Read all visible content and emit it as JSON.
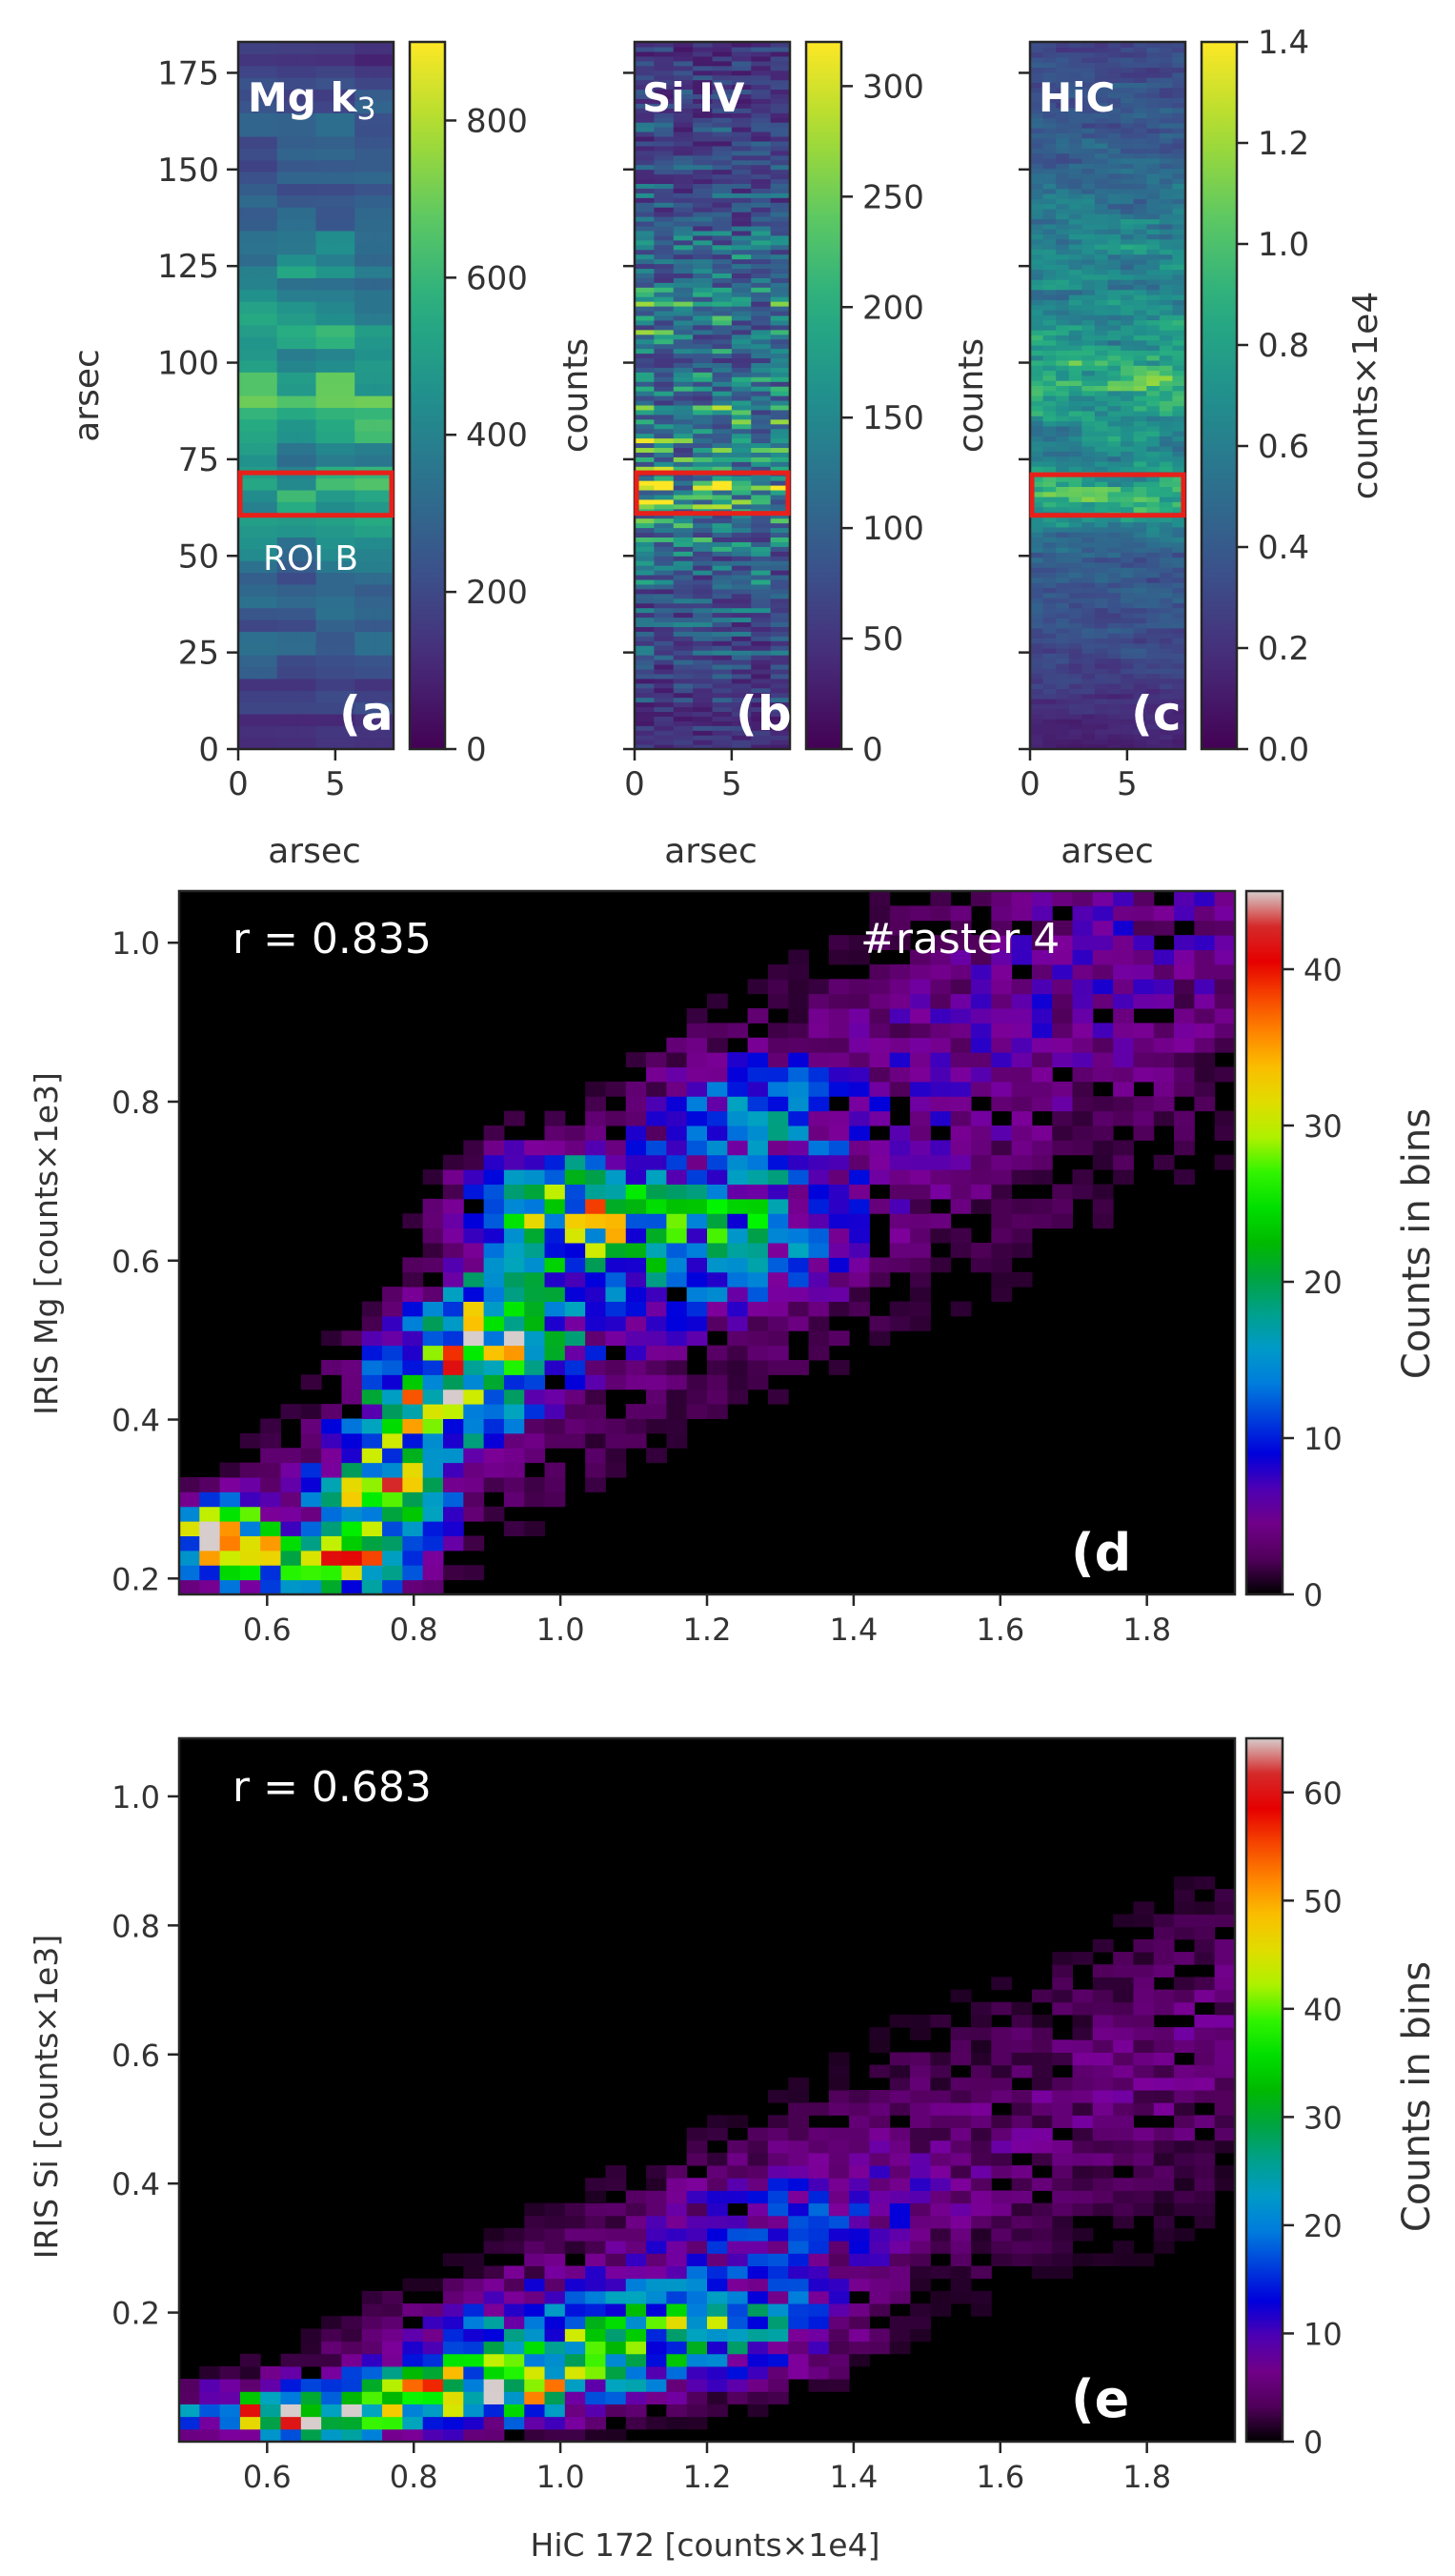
{
  "figure_labels": [
    "(a",
    "(b",
    "(c",
    "(d",
    "(e"
  ],
  "chart_data": [
    {
      "id": "a",
      "type": "heatmap",
      "panel_label": "(a",
      "title": "Mg k3",
      "title_main": "Mg k",
      "title_sub": "3",
      "annotation": "ROI B",
      "xlabel": "arsec",
      "ylabel": "arsec",
      "xlim": [
        0,
        8
      ],
      "ylim": [
        0,
        183
      ],
      "x_ticks": [
        0,
        5
      ],
      "y_ticks": [
        0,
        25,
        50,
        75,
        100,
        125,
        150,
        175
      ],
      "roi": {
        "x": [
          0.1,
          7.9
        ],
        "y": [
          60.5,
          71.5
        ],
        "color": "#e8201a"
      },
      "colormap": "viridis",
      "colorbar": {
        "label": "counts",
        "range": [
          0,
          900
        ],
        "ticks": [
          0,
          200,
          400,
          600,
          800
        ]
      },
      "profile": [
        [
          0,
          120
        ],
        [
          8,
          150
        ],
        [
          15,
          220
        ],
        [
          22,
          260
        ],
        [
          30,
          310
        ],
        [
          38,
          330
        ],
        [
          45,
          300
        ],
        [
          50,
          380
        ],
        [
          55,
          420
        ],
        [
          58,
          450
        ],
        [
          62,
          560
        ],
        [
          66,
          640
        ],
        [
          70,
          560
        ],
        [
          74,
          470
        ],
        [
          78,
          520
        ],
        [
          82,
          560
        ],
        [
          86,
          600
        ],
        [
          89,
          780
        ],
        [
          92,
          700
        ],
        [
          95,
          620
        ],
        [
          100,
          560
        ],
        [
          105,
          530
        ],
        [
          110,
          500
        ],
        [
          115,
          480
        ],
        [
          120,
          460
        ],
        [
          125,
          420
        ],
        [
          130,
          380
        ],
        [
          140,
          330
        ],
        [
          150,
          300
        ],
        [
          160,
          270
        ],
        [
          170,
          240
        ],
        [
          175,
          200
        ],
        [
          178,
          140
        ],
        [
          183,
          100
        ]
      ]
    },
    {
      "id": "b",
      "type": "heatmap",
      "panel_label": "(b",
      "title": "Si IV",
      "xlabel": "arsec",
      "ylabel": "",
      "xlim": [
        0,
        8
      ],
      "ylim": [
        0,
        183
      ],
      "x_ticks": [
        0,
        5
      ],
      "y_ticks": [
        0,
        25,
        50,
        75,
        100,
        125,
        150,
        175
      ],
      "roi": {
        "x": [
          0.1,
          7.9
        ],
        "y": [
          61,
          71.5
        ],
        "color": "#e8201a"
      },
      "colormap": "viridis",
      "colorbar": {
        "label": "counts",
        "range": [
          0,
          320
        ],
        "ticks": [
          0,
          50,
          100,
          150,
          200,
          250,
          300
        ]
      },
      "profile": [
        [
          0,
          40
        ],
        [
          10,
          55
        ],
        [
          20,
          70
        ],
        [
          30,
          80
        ],
        [
          40,
          95
        ],
        [
          50,
          110
        ],
        [
          55,
          130
        ],
        [
          60,
          160
        ],
        [
          65,
          220
        ],
        [
          70,
          190
        ],
        [
          75,
          150
        ],
        [
          80,
          160
        ],
        [
          85,
          170
        ],
        [
          90,
          150
        ],
        [
          100,
          130
        ],
        [
          110,
          150
        ],
        [
          120,
          140
        ],
        [
          130,
          110
        ],
        [
          140,
          90
        ],
        [
          150,
          80
        ],
        [
          160,
          70
        ],
        [
          170,
          60
        ],
        [
          183,
          50
        ]
      ]
    },
    {
      "id": "c",
      "type": "heatmap",
      "panel_label": "(c",
      "title": "HiC",
      "xlabel": "arsec",
      "ylabel": "",
      "xlim": [
        0,
        8
      ],
      "ylim": [
        0,
        183
      ],
      "x_ticks": [
        0,
        5
      ],
      "y_ticks": [
        0,
        25,
        50,
        75,
        100,
        125,
        150,
        175
      ],
      "roi": {
        "x": [
          0.1,
          7.9
        ],
        "y": [
          60.5,
          71
        ],
        "color": "#e8201a"
      },
      "colormap": "viridis",
      "colorbar": {
        "label": "counts×1e4",
        "range": [
          0,
          1.4
        ],
        "ticks": [
          0.0,
          0.2,
          0.4,
          0.6,
          0.8,
          1.0,
          1.2,
          1.4
        ]
      },
      "profile": [
        [
          0,
          0.12
        ],
        [
          10,
          0.18
        ],
        [
          20,
          0.28
        ],
        [
          30,
          0.34
        ],
        [
          40,
          0.38
        ],
        [
          50,
          0.42
        ],
        [
          55,
          0.5
        ],
        [
          60,
          0.72
        ],
        [
          65,
          0.95
        ],
        [
          70,
          0.8
        ],
        [
          75,
          0.62
        ],
        [
          80,
          0.66
        ],
        [
          85,
          0.72
        ],
        [
          90,
          0.78
        ],
        [
          95,
          0.95
        ],
        [
          100,
          0.85
        ],
        [
          105,
          0.74
        ],
        [
          110,
          0.7
        ],
        [
          120,
          0.62
        ],
        [
          130,
          0.66
        ],
        [
          140,
          0.56
        ],
        [
          150,
          0.46
        ],
        [
          160,
          0.4
        ],
        [
          170,
          0.36
        ],
        [
          183,
          0.3
        ]
      ]
    },
    {
      "id": "d",
      "type": "heatmap",
      "panel_label": "(d",
      "annotation": "r = 0.835",
      "annotation2": "#raster 4",
      "xlabel": "",
      "ylabel": "IRIS Mg [counts×1e3]",
      "xlim": [
        0.48,
        1.92
      ],
      "ylim": [
        0.18,
        1.065
      ],
      "x_ticks": [
        0.6,
        0.8,
        1.0,
        1.2,
        1.4,
        1.6,
        1.8
      ],
      "y_ticks": [
        0.2,
        0.4,
        0.6,
        0.8,
        1.0
      ],
      "colormap": "nipy_spectral",
      "colorbar": {
        "label": "Counts in bins",
        "range": [
          0,
          45
        ],
        "ticks": [
          0,
          10,
          20,
          30,
          40
        ]
      },
      "trend": {
        "slope": 0.65,
        "intercept": -0.15,
        "spread": 0.09
      },
      "density_peaks": [
        {
          "x": 0.54,
          "y": 0.245,
          "value": 40,
          "sx": 0.05,
          "sy": 0.03
        },
        {
          "x": 0.7,
          "y": 0.215,
          "value": 36,
          "sx": 0.05,
          "sy": 0.02
        },
        {
          "x": 0.76,
          "y": 0.3,
          "value": 26,
          "sx": 0.05,
          "sy": 0.05
        },
        {
          "x": 0.83,
          "y": 0.43,
          "value": 28,
          "sx": 0.06,
          "sy": 0.05
        },
        {
          "x": 0.92,
          "y": 0.52,
          "value": 30,
          "sx": 0.06,
          "sy": 0.04
        },
        {
          "x": 1.0,
          "y": 0.66,
          "value": 26,
          "sx": 0.08,
          "sy": 0.05
        },
        {
          "x": 1.22,
          "y": 0.64,
          "value": 14,
          "sx": 0.1,
          "sy": 0.06
        },
        {
          "x": 1.25,
          "y": 0.8,
          "value": 10,
          "sx": 0.08,
          "sy": 0.05
        }
      ]
    },
    {
      "id": "e",
      "type": "heatmap",
      "panel_label": "(e",
      "annotation": "r = 0.683",
      "xlabel": "HiC 172 [counts×1e4]",
      "ylabel": "IRIS Si [counts×1e3]",
      "xlim": [
        0.48,
        1.92
      ],
      "ylim": [
        0.0,
        1.09
      ],
      "x_ticks": [
        0.6,
        0.8,
        1.0,
        1.2,
        1.4,
        1.6,
        1.8
      ],
      "y_ticks": [
        0.2,
        0.4,
        0.6,
        0.8,
        1.0
      ],
      "colormap": "nipy_spectral",
      "colorbar": {
        "label": "Counts in bins",
        "range": [
          0,
          65
        ],
        "ticks": [
          0,
          10,
          20,
          30,
          40,
          50,
          60
        ]
      },
      "trend": {
        "slope": 0.45,
        "intercept": -0.24,
        "spread": 0.07
      },
      "density_peaks": [
        {
          "x": 0.66,
          "y": 0.045,
          "value": 55,
          "sx": 0.1,
          "sy": 0.025
        },
        {
          "x": 0.88,
          "y": 0.08,
          "value": 45,
          "sx": 0.08,
          "sy": 0.03
        },
        {
          "x": 1.02,
          "y": 0.14,
          "value": 32,
          "sx": 0.1,
          "sy": 0.05
        },
        {
          "x": 1.22,
          "y": 0.18,
          "value": 24,
          "sx": 0.1,
          "sy": 0.05
        },
        {
          "x": 1.33,
          "y": 0.34,
          "value": 8,
          "sx": 0.12,
          "sy": 0.06
        }
      ]
    }
  ]
}
